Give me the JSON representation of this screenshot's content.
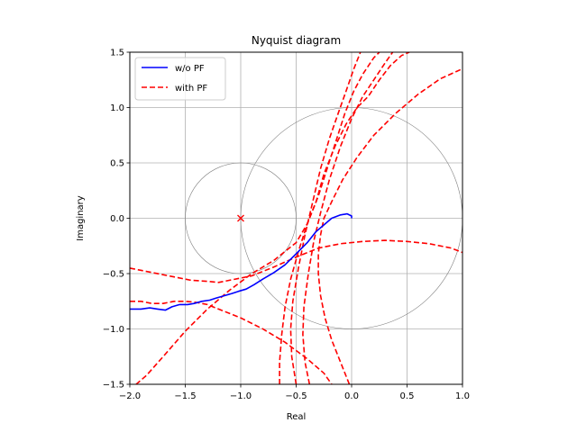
{
  "chart_data": {
    "type": "line",
    "title": "Nyquist diagram",
    "xlabel": "Real",
    "ylabel": "Imaginary",
    "xlim": [
      -2.0,
      1.0
    ],
    "ylim": [
      -1.5,
      1.5
    ],
    "xticks": [
      -2.0,
      -1.5,
      -1.0,
      -0.5,
      0.0,
      0.5,
      1.0
    ],
    "yticks": [
      -1.5,
      -1.0,
      -0.5,
      0.0,
      0.5,
      1.0,
      1.5
    ],
    "xtick_labels": [
      "−2.0",
      "−1.5",
      "−1.0",
      "−0.5",
      "0.0",
      "0.5",
      "1.0"
    ],
    "ytick_labels": [
      "−1.5",
      "−1.0",
      "−0.5",
      "0.0",
      "0.5",
      "1.0",
      "1.5"
    ],
    "grid": true,
    "legend_position": "top-left",
    "critical_point": {
      "x": -1.0,
      "y": 0.0,
      "color": "#ff0000"
    },
    "reference_circles": [
      {
        "center": [
          -1.0,
          0.0
        ],
        "radius": 0.5,
        "color": "#808080"
      },
      {
        "center": [
          0.0,
          0.0
        ],
        "radius": 1.0,
        "color": "#808080"
      }
    ],
    "series": [
      {
        "name": "w/o PF",
        "color": "#0000ff",
        "style": "solid",
        "curves": [
          [
            [
              -2.0,
              -0.82
            ],
            [
              -1.9,
              -0.82
            ],
            [
              -1.82,
              -0.81
            ],
            [
              -1.75,
              -0.82
            ],
            [
              -1.68,
              -0.83
            ],
            [
              -1.62,
              -0.8
            ],
            [
              -1.55,
              -0.78
            ],
            [
              -1.48,
              -0.78
            ],
            [
              -1.42,
              -0.77
            ],
            [
              -1.35,
              -0.75
            ],
            [
              -1.28,
              -0.74
            ],
            [
              -1.22,
              -0.72
            ],
            [
              -1.15,
              -0.7
            ],
            [
              -1.08,
              -0.68
            ],
            [
              -1.02,
              -0.66
            ],
            [
              -0.95,
              -0.64
            ],
            [
              -0.88,
              -0.6
            ],
            [
              -0.8,
              -0.55
            ],
            [
              -0.7,
              -0.49
            ],
            [
              -0.6,
              -0.42
            ],
            [
              -0.5,
              -0.32
            ],
            [
              -0.4,
              -0.22
            ],
            [
              -0.32,
              -0.12
            ],
            [
              -0.25,
              -0.06
            ],
            [
              -0.18,
              0.0
            ],
            [
              -0.1,
              0.03
            ],
            [
              -0.04,
              0.04
            ],
            [
              0.0,
              0.02
            ],
            [
              0.0,
              0.0
            ]
          ]
        ]
      },
      {
        "name": "with PF",
        "color": "#ff0000",
        "style": "dashed",
        "curves": [
          [
            [
              -2.0,
              -0.45
            ],
            [
              -1.8,
              -0.49
            ],
            [
              -1.6,
              -0.53
            ],
            [
              -1.45,
              -0.56
            ],
            [
              -1.3,
              -0.57
            ],
            [
              -1.2,
              -0.58
            ],
            [
              -1.1,
              -0.56
            ],
            [
              -0.9,
              -0.52
            ],
            [
              -0.7,
              -0.44
            ],
            [
              -0.5,
              -0.35
            ],
            [
              -0.3,
              -0.27
            ],
            [
              -0.1,
              -0.23
            ],
            [
              0.1,
              -0.21
            ],
            [
              0.3,
              -0.2
            ],
            [
              0.5,
              -0.21
            ],
            [
              0.7,
              -0.23
            ],
            [
              0.9,
              -0.27
            ],
            [
              1.0,
              -0.31
            ]
          ],
          [
            [
              -2.0,
              -0.75
            ],
            [
              -1.9,
              -0.75
            ],
            [
              -1.8,
              -0.77
            ],
            [
              -1.7,
              -0.77
            ],
            [
              -1.6,
              -0.75
            ],
            [
              -1.5,
              -0.75
            ],
            [
              -1.4,
              -0.76
            ],
            [
              -1.3,
              -0.78
            ],
            [
              -1.2,
              -0.82
            ],
            [
              -1.0,
              -0.9
            ],
            [
              -0.8,
              -1.0
            ],
            [
              -0.6,
              -1.12
            ],
            [
              -0.4,
              -1.27
            ],
            [
              -0.25,
              -1.4
            ],
            [
              -0.18,
              -1.5
            ]
          ],
          [
            [
              -2.0,
              -1.55
            ],
            [
              -1.85,
              -1.42
            ],
            [
              -1.7,
              -1.25
            ],
            [
              -1.5,
              -1.02
            ],
            [
              -1.3,
              -0.82
            ],
            [
              -1.1,
              -0.65
            ],
            [
              -0.9,
              -0.5
            ],
            [
              -0.7,
              -0.38
            ],
            [
              -0.5,
              -0.22
            ],
            [
              -0.4,
              -0.05
            ],
            [
              -0.32,
              0.15
            ],
            [
              -0.25,
              0.4
            ],
            [
              -0.15,
              0.65
            ],
            [
              -0.05,
              0.85
            ],
            [
              0.05,
              1.0
            ],
            [
              0.15,
              1.1
            ],
            [
              0.25,
              1.25
            ],
            [
              0.35,
              1.38
            ],
            [
              0.45,
              1.47
            ],
            [
              0.52,
              1.5
            ]
          ],
          [
            [
              -0.65,
              -1.5
            ],
            [
              -0.65,
              -1.3
            ],
            [
              -0.63,
              -1.05
            ],
            [
              -0.6,
              -0.8
            ],
            [
              -0.55,
              -0.55
            ],
            [
              -0.48,
              -0.3
            ],
            [
              -0.4,
              -0.05
            ],
            [
              -0.3,
              0.2
            ],
            [
              -0.22,
              0.45
            ],
            [
              -0.14,
              0.7
            ],
            [
              -0.06,
              0.95
            ],
            [
              0.02,
              1.15
            ],
            [
              0.1,
              1.3
            ],
            [
              0.2,
              1.45
            ],
            [
              0.25,
              1.5
            ]
          ],
          [
            [
              -0.38,
              -1.5
            ],
            [
              -0.42,
              -1.3
            ],
            [
              -0.44,
              -1.05
            ],
            [
              -0.43,
              -0.8
            ],
            [
              -0.39,
              -0.5
            ],
            [
              -0.34,
              -0.2
            ],
            [
              -0.28,
              0.05
            ],
            [
              -0.2,
              0.35
            ],
            [
              -0.1,
              0.65
            ],
            [
              0.0,
              0.9
            ],
            [
              0.1,
              1.1
            ],
            [
              0.2,
              1.25
            ],
            [
              0.3,
              1.4
            ],
            [
              0.37,
              1.5
            ]
          ],
          [
            [
              -0.5,
              -1.5
            ],
            [
              -0.54,
              -1.25
            ],
            [
              -0.55,
              -1.0
            ],
            [
              -0.53,
              -0.75
            ],
            [
              -0.48,
              -0.45
            ],
            [
              -0.42,
              -0.15
            ],
            [
              -0.35,
              0.15
            ],
            [
              -0.28,
              0.45
            ],
            [
              -0.2,
              0.72
            ],
            [
              -0.12,
              0.95
            ],
            [
              -0.05,
              1.15
            ],
            [
              0.02,
              1.35
            ],
            [
              0.08,
              1.5
            ]
          ],
          [
            [
              -0.02,
              -1.5
            ],
            [
              -0.1,
              -1.3
            ],
            [
              -0.18,
              -1.1
            ],
            [
              -0.24,
              -0.9
            ],
            [
              -0.28,
              -0.7
            ],
            [
              -0.3,
              -0.5
            ],
            [
              -0.3,
              -0.32
            ],
            [
              -0.28,
              -0.15
            ],
            [
              -0.25,
              0.0
            ],
            [
              -0.18,
              0.15
            ],
            [
              -0.08,
              0.35
            ],
            [
              0.05,
              0.55
            ],
            [
              0.2,
              0.75
            ],
            [
              0.4,
              0.95
            ],
            [
              0.6,
              1.12
            ],
            [
              0.8,
              1.26
            ],
            [
              1.0,
              1.35
            ]
          ]
        ]
      }
    ]
  }
}
